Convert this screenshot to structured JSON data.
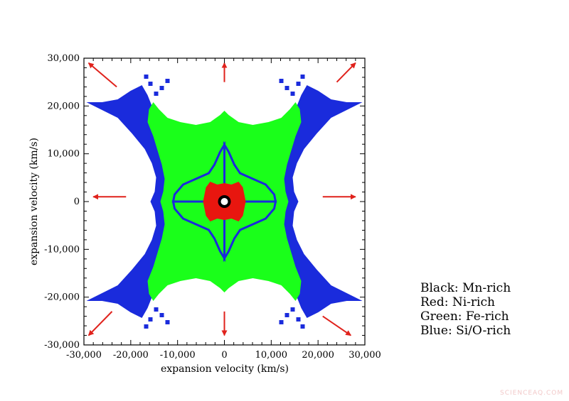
{
  "chart_data": {
    "type": "heatmap",
    "title": "",
    "xlabel": "expansion velocity (km/s)",
    "ylabel": "expansion velocity (km/s)",
    "xlim": [
      -30000,
      30000
    ],
    "ylim": [
      -30000,
      30000
    ],
    "xticks": [
      "-30,000",
      "-20,000",
      "-10,000",
      "0",
      "10,000",
      "20,000",
      "30,000"
    ],
    "yticks": [
      "30,000",
      "20,000",
      "10,000",
      "0",
      "-10,000",
      "-20,000",
      "-30,000"
    ],
    "tick_values": [
      -30000,
      -20000,
      -10000,
      0,
      10000,
      20000,
      30000
    ],
    "grid": false,
    "legend_placement": "outside-right-bottom",
    "regions": [
      {
        "name": "Si/O-rich",
        "color": "#1a2bdc"
      },
      {
        "name": "Fe-rich",
        "color": "#1aff1a"
      },
      {
        "name": "Ni-rich",
        "color": "#e8160f"
      },
      {
        "name": "Mn-rich",
        "color": "#000000"
      }
    ],
    "arrow_color": "#e0221c",
    "arrows": [
      {
        "from": [
          -23000,
          24000
        ],
        "to": [
          -29000,
          29000
        ]
      },
      {
        "from": [
          0,
          25000
        ],
        "to": [
          0,
          29000
        ]
      },
      {
        "from": [
          24000,
          25000
        ],
        "to": [
          28000,
          29000
        ]
      },
      {
        "from": [
          -21000,
          1000
        ],
        "to": [
          -28000,
          1000
        ]
      },
      {
        "from": [
          21000,
          1000
        ],
        "to": [
          28000,
          1000
        ]
      },
      {
        "from": [
          -24000,
          -23000
        ],
        "to": [
          -29000,
          -28000
        ]
      },
      {
        "from": [
          0,
          -23000
        ],
        "to": [
          0,
          -28000
        ]
      },
      {
        "from": [
          21000,
          -24000
        ],
        "to": [
          27000,
          -28000
        ]
      }
    ]
  },
  "legend": {
    "lines": [
      "Black: Mn-rich",
      "Red: Ni-rich",
      "Green: Fe-rich",
      "Blue: Si/O-rich"
    ]
  },
  "watermark": "SCIENCEAQ.COM"
}
